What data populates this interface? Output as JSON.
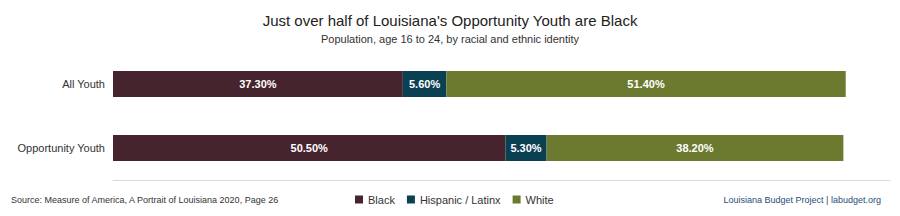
{
  "chart_data": {
    "type": "bar",
    "title": "Just over half of Louisiana's Opportunity Youth are Black",
    "subtitle": "Population, age 16 to 24, by racial and ethnic identity",
    "source": "Source: Measure of America, A Portrait of Louisiana 2020, Page 26",
    "credit": "Louisiana Budget Project | labudget.org",
    "orientation": "horizontal",
    "stacked": true,
    "data_labels": true,
    "tick_labels": "y",
    "legend": "bottom",
    "categories": [
      "All Youth",
      "Opportunity Youth"
    ],
    "series": [
      {
        "name": "Black",
        "color": "#45242e",
        "values": [
          37.3,
          50.5
        ],
        "value_labels": [
          "37.30%",
          "50.50%"
        ]
      },
      {
        "name": "Hispanic / Latinx",
        "color": "#0b3f52",
        "values": [
          5.6,
          5.3
        ],
        "value_labels": [
          "5.60%",
          "5.30%"
        ]
      },
      {
        "name": "White",
        "color": "#6b7a2e",
        "values": [
          51.4,
          38.2
        ],
        "value_labels": [
          "51.40%",
          "38.20%"
        ]
      }
    ],
    "xlim": [
      0,
      100
    ]
  }
}
